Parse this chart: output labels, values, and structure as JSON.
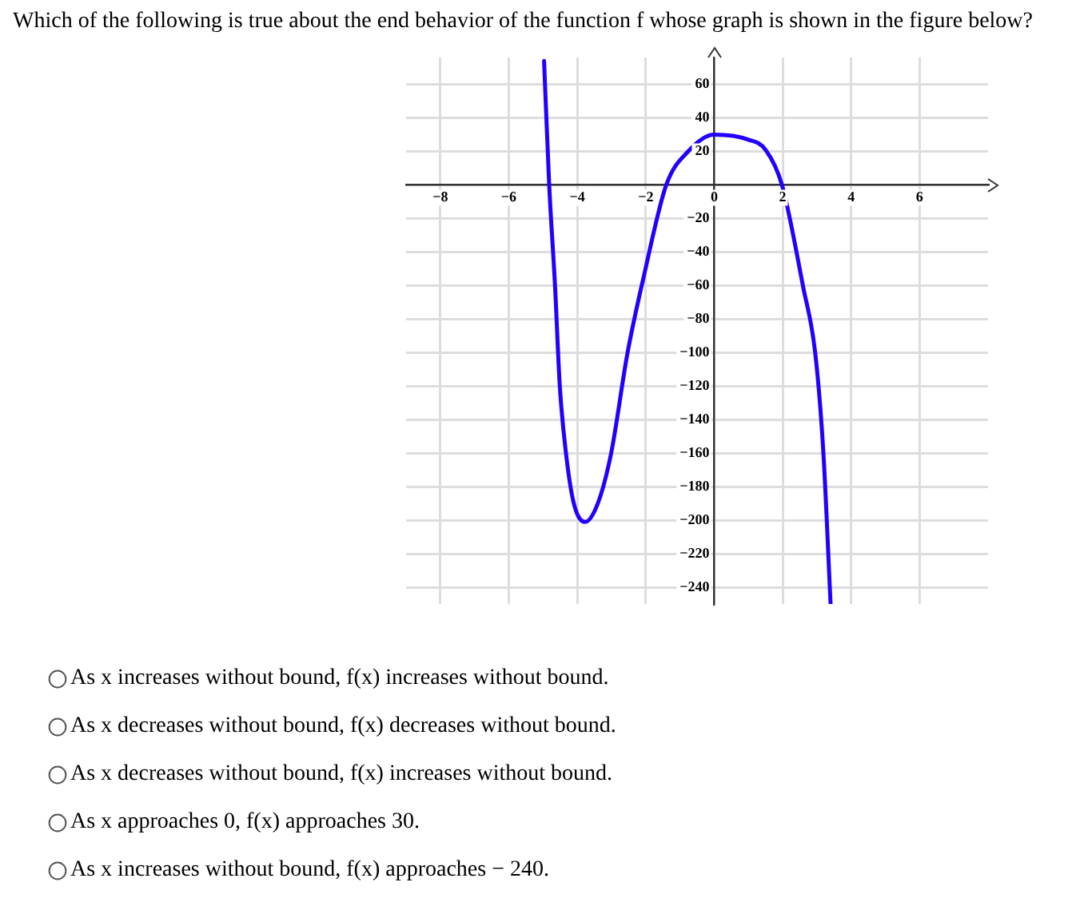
{
  "chart_data": {
    "type": "line",
    "title": "Which of the following is true about the end behavior of the function f whose graph is shown in the figure below?",
    "series": [
      {
        "color": "#2200ff",
        "x": [
          -4.97,
          -4.82,
          -4.65,
          -4.51,
          -4.33,
          -4.1,
          -3.77,
          -3.4,
          -3.01,
          -2.53,
          -2.05,
          -1.4,
          -0.76,
          0,
          1,
          1.5,
          1.98,
          2.6,
          2.95,
          3.19,
          3.4
        ],
        "values": [
          74,
          0,
          -60,
          -120,
          -160,
          -190,
          -201,
          -190,
          -160,
          -100,
          -54,
          0,
          20,
          30,
          27,
          21,
          0,
          -61,
          -100,
          -160,
          -250
        ]
      }
    ],
    "xlim": [
      -9,
      8
    ],
    "ylim": [
      -250,
      76
    ],
    "xticks": [
      -8,
      -6,
      -4,
      -2,
      0,
      2,
      4,
      6
    ],
    "yticks": [
      60,
      40,
      20,
      {
        "value": 0,
        "label": null
      },
      -20,
      -40,
      -60,
      -80,
      -100,
      -120,
      -140,
      -160,
      -180,
      -200,
      -220,
      -240
    ],
    "grid": true,
    "marker": "none",
    "line_style": "solid",
    "legend": false,
    "annotations": [
      "As x increases without bound, f(x) increases without bound.",
      "As x decreases without bound, f(x) decreases without bound.",
      "As x decreases without bound, f(x) increases without bound.",
      "As x approaches 0, f(x) approaches 30.",
      "As x increases without bound, f(x) approaches − 240."
    ]
  }
}
